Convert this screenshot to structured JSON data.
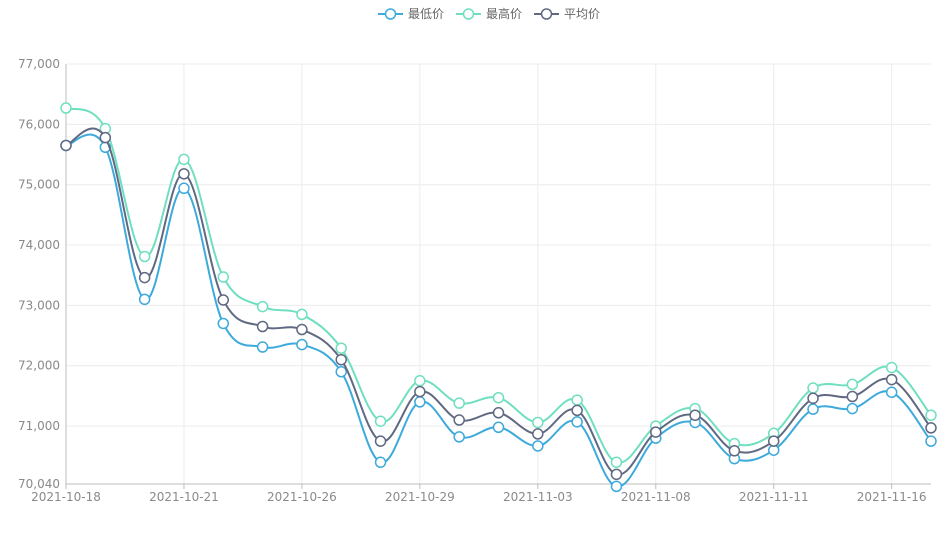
{
  "chart_data": {
    "type": "line",
    "title": "",
    "xlabel": "",
    "ylabel": "",
    "ylim": [
      70040,
      77000
    ],
    "y_ticks": [
      "77,000",
      "76,000",
      "75,000",
      "74,000",
      "73,000",
      "72,000",
      "71,000",
      "70,040"
    ],
    "y_tick_values": [
      77000,
      76000,
      75000,
      74000,
      73000,
      72000,
      71000,
      70040
    ],
    "x_ticks": [
      "2021-10-18",
      "2021-10-21",
      "2021-10-26",
      "2021-10-29",
      "2021-11-03",
      "2021-11-08",
      "2021-11-11",
      "2021-11-16"
    ],
    "x_tick_index": [
      0,
      3,
      6,
      9,
      12,
      15,
      18,
      21
    ],
    "grid": true,
    "smooth": true,
    "legend_position": "top-center",
    "series": [
      {
        "name": "最低价",
        "color": "#3daadb",
        "values": [
          75650,
          75620,
          73100,
          74940,
          72700,
          72310,
          72350,
          71900,
          70400,
          71400,
          70820,
          70980,
          70670,
          71070,
          70000,
          70800,
          71060,
          70460,
          70600,
          71280,
          71290,
          71560,
          70750
        ]
      },
      {
        "name": "最高价",
        "color": "#6fdfc0",
        "values": [
          76270,
          75930,
          73810,
          75420,
          73470,
          72980,
          72850,
          72290,
          71080,
          71750,
          71380,
          71470,
          71060,
          71430,
          70400,
          71000,
          71290,
          70710,
          70880,
          71630,
          71690,
          71970,
          71180
        ]
      },
      {
        "name": "平均价",
        "color": "#606882",
        "values": [
          75650,
          75780,
          73460,
          75180,
          73090,
          72650,
          72600,
          72100,
          70750,
          71570,
          71100,
          71220,
          70870,
          71260,
          70200,
          70900,
          71180,
          70590,
          70750,
          71460,
          71490,
          71770,
          70970
        ]
      }
    ]
  }
}
